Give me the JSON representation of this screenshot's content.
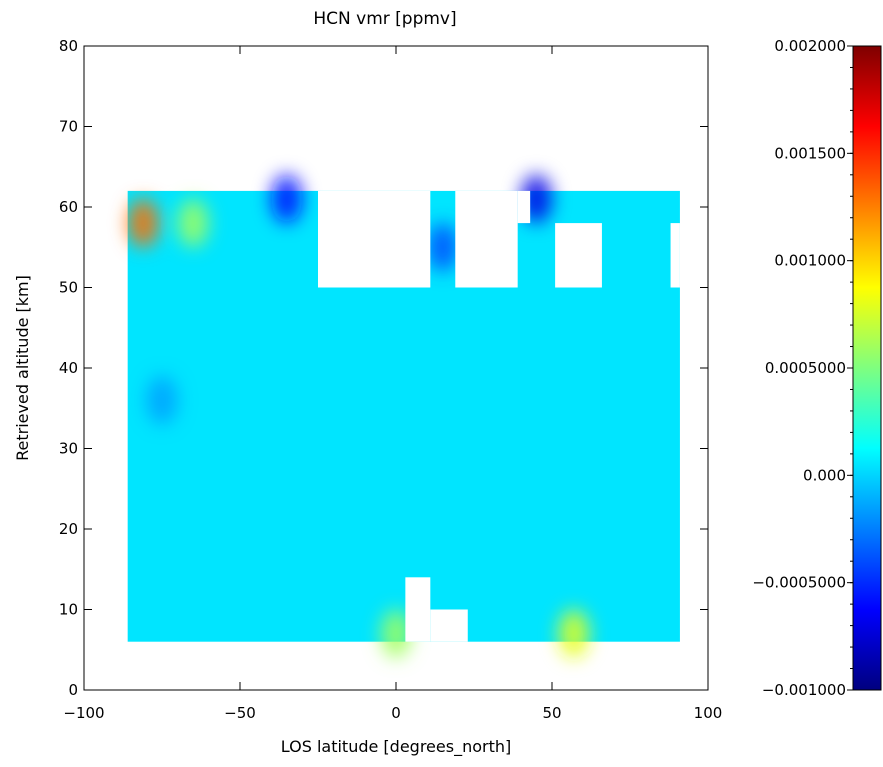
{
  "chart_data": {
    "type": "heatmap",
    "title": "HCN vmr [ppmv]",
    "xlabel": "LOS latitude [degrees_north]",
    "ylabel": "Retrieved altitude [km]",
    "xlim": [
      -100,
      100
    ],
    "ylim": [
      0,
      80
    ],
    "x_ticks": [
      "-100",
      "-50",
      "0",
      "50",
      "100"
    ],
    "y_ticks": [
      "0",
      "10",
      "20",
      "30",
      "40",
      "50",
      "60",
      "70",
      "80"
    ],
    "grid": false,
    "colormap": "rainbow (blue-cyan-green-yellow-red)",
    "colorbar": {
      "range": [
        -0.001,
        0.002
      ],
      "position": "right",
      "tick_labels": [
        "-0.001000",
        "-0.0005000",
        "0.000",
        "0.0005000",
        "0.001000",
        "0.001500",
        "0.002000"
      ],
      "tick_values": [
        -0.001,
        -0.0005,
        0.0,
        0.0005,
        0.001,
        0.0015,
        0.002
      ]
    },
    "data_extent": {
      "lat_range": [
        -86,
        91
      ],
      "alt_range": [
        6,
        62
      ],
      "background_value": 5e-05,
      "missing_regions": [
        {
          "lat": [
            -25,
            11
          ],
          "alt": [
            50,
            62
          ]
        },
        {
          "lat": [
            19,
            39
          ],
          "alt": [
            50,
            62
          ]
        },
        {
          "lat": [
            39,
            43
          ],
          "alt": [
            58,
            62
          ]
        },
        {
          "lat": [
            51,
            66
          ],
          "alt": [
            50,
            58
          ]
        },
        {
          "lat": [
            88,
            91
          ],
          "alt": [
            50,
            58
          ]
        },
        {
          "lat": [
            3,
            11
          ],
          "alt": [
            6,
            14
          ]
        },
        {
          "lat": [
            11,
            23
          ],
          "alt": [
            6,
            10
          ]
        }
      ],
      "features": [
        {
          "lat": -81,
          "alt": 58,
          "value": 0.0013,
          "note": "hot spot"
        },
        {
          "lat": -65,
          "alt": 58,
          "value": 0.0006
        },
        {
          "lat": -35,
          "alt": 61,
          "value": -0.0006
        },
        {
          "lat": 15,
          "alt": 55,
          "value": -0.0004
        },
        {
          "lat": 45,
          "alt": 61,
          "value": -0.0007
        },
        {
          "lat": 0,
          "alt": 7,
          "value": 0.0006
        },
        {
          "lat": 57,
          "alt": 7,
          "value": 0.0008
        },
        {
          "lat": -75,
          "alt": 36,
          "value": -0.00015
        }
      ]
    }
  },
  "colors": {
    "colormap_stops": [
      "#00007f",
      "#0000ff",
      "#007fff",
      "#00ffff",
      "#7fff7f",
      "#ffff00",
      "#ff7f00",
      "#ff0000",
      "#7f0000"
    ],
    "background_field": "#33e6e8",
    "axis": "#000000"
  }
}
